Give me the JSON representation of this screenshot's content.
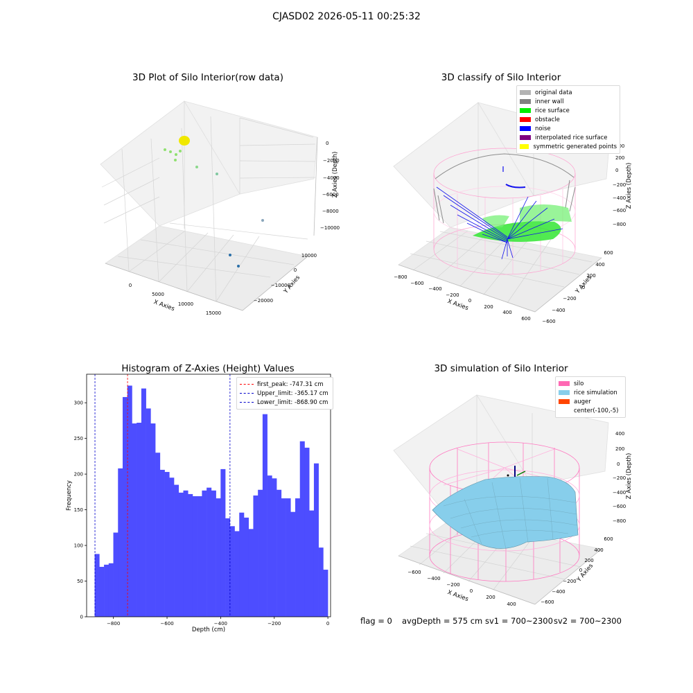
{
  "title": "CJASD02 2026-05-11 00:25:32",
  "chart_data": [
    {
      "type": "scatter",
      "title": "3D Plot of Silo Interior(row data)",
      "xlabel": "X Axies",
      "ylabel": "Y Axies",
      "zlabel": "Z Axies (Depth)",
      "x_ticks": [
        "0",
        "5000",
        "10000",
        "15000"
      ],
      "y_ticks": [
        "10000",
        "0",
        "−10000",
        "−20000"
      ],
      "z_ticks": [
        "0",
        "−2000",
        "−4000",
        "−6000",
        "−8000",
        "−10000"
      ]
    },
    {
      "type": "scatter",
      "title": "3D classify of Silo Interior",
      "xlabel": "X Axies",
      "ylabel": "Y Axies",
      "zlabel": "Z Axies (Depth)",
      "x_ticks": [
        "−800",
        "−600",
        "−400",
        "−200",
        "0",
        "200",
        "400",
        "600"
      ],
      "y_ticks": [
        "600",
        "400",
        "200",
        "0",
        "−200",
        "−400",
        "−600"
      ],
      "z_ticks": [
        "400",
        "200",
        "0",
        "−200",
        "−400",
        "−600",
        "−800"
      ],
      "legend": [
        {
          "label": "original data",
          "color": "#b3b3b3"
        },
        {
          "label": "inner wall",
          "color": "#808080"
        },
        {
          "label": "rice surface",
          "color": "#00ee00"
        },
        {
          "label": "obstacle",
          "color": "#ff0000"
        },
        {
          "label": "noise",
          "color": "#0000ff"
        },
        {
          "label": "interpolated rice surface",
          "color": "#800080"
        },
        {
          "label": "symmetric generated points",
          "color": "#ffff00"
        }
      ]
    },
    {
      "type": "bar",
      "title": "Histogram of Z-Axies (Height) Values",
      "xlabel": "Depth (cm)",
      "ylabel": "Frequency",
      "xlim": [
        -900,
        10
      ],
      "ylim": [
        0,
        340
      ],
      "x_ticks": [
        -800,
        -600,
        -400,
        -200,
        0
      ],
      "x_tick_labels": [
        "−800",
        "−600",
        "−400",
        "−200",
        "0"
      ],
      "y_ticks": [
        0,
        50,
        100,
        150,
        200,
        250,
        300
      ],
      "bin_start": -870,
      "bin_width": 17.4,
      "values": [
        88,
        70,
        73,
        75,
        118,
        208,
        308,
        324,
        271,
        272,
        320,
        292,
        271,
        230,
        206,
        203,
        195,
        185,
        174,
        177,
        172,
        169,
        169,
        177,
        181,
        177,
        166,
        207,
        138,
        127,
        120,
        146,
        139,
        123,
        170,
        178,
        284,
        198,
        194,
        178,
        166,
        166,
        147,
        166,
        246,
        237,
        149,
        215,
        97,
        66
      ],
      "bar_color": "#4d4dff",
      "lines": [
        {
          "label": "first_peak: -747.31 cm",
          "x": -747.31,
          "color": "#ff0000"
        },
        {
          "label": "Upper_limit: -365.17 cm",
          "x": -365.17,
          "color": "#0000cc"
        },
        {
          "label": "Lower_limit: -868.90 cm",
          "x": -868.9,
          "color": "#0000cc"
        }
      ]
    },
    {
      "type": "surface",
      "title": "3D simulation of Silo Interior",
      "xlabel": "X Axies",
      "ylabel": "Y Axies",
      "zlabel": "Z Axies (Depth)",
      "x_ticks": [
        "−600",
        "−400",
        "−200",
        "0",
        "200",
        "400"
      ],
      "y_ticks": [
        "600",
        "400",
        "200",
        "0",
        "−200",
        "−400",
        "−600"
      ],
      "z_ticks": [
        "400",
        "200",
        "0",
        "−200",
        "−400",
        "−600",
        "−800"
      ],
      "legend": [
        {
          "label": "silo",
          "color": "#ff69b4"
        },
        {
          "label": "rice simulation",
          "color": "#87ceeb"
        },
        {
          "label": "auger",
          "color": "#ff4500"
        },
        {
          "label": "center(-100,-5)",
          "color": ""
        }
      ]
    }
  ],
  "status": {
    "flag": "flag = 0",
    "avg_depth": "avgDepth = 575 cm",
    "sv1": "sv1 = 700~2300",
    "sv2": "sv2 = 700~2300"
  }
}
